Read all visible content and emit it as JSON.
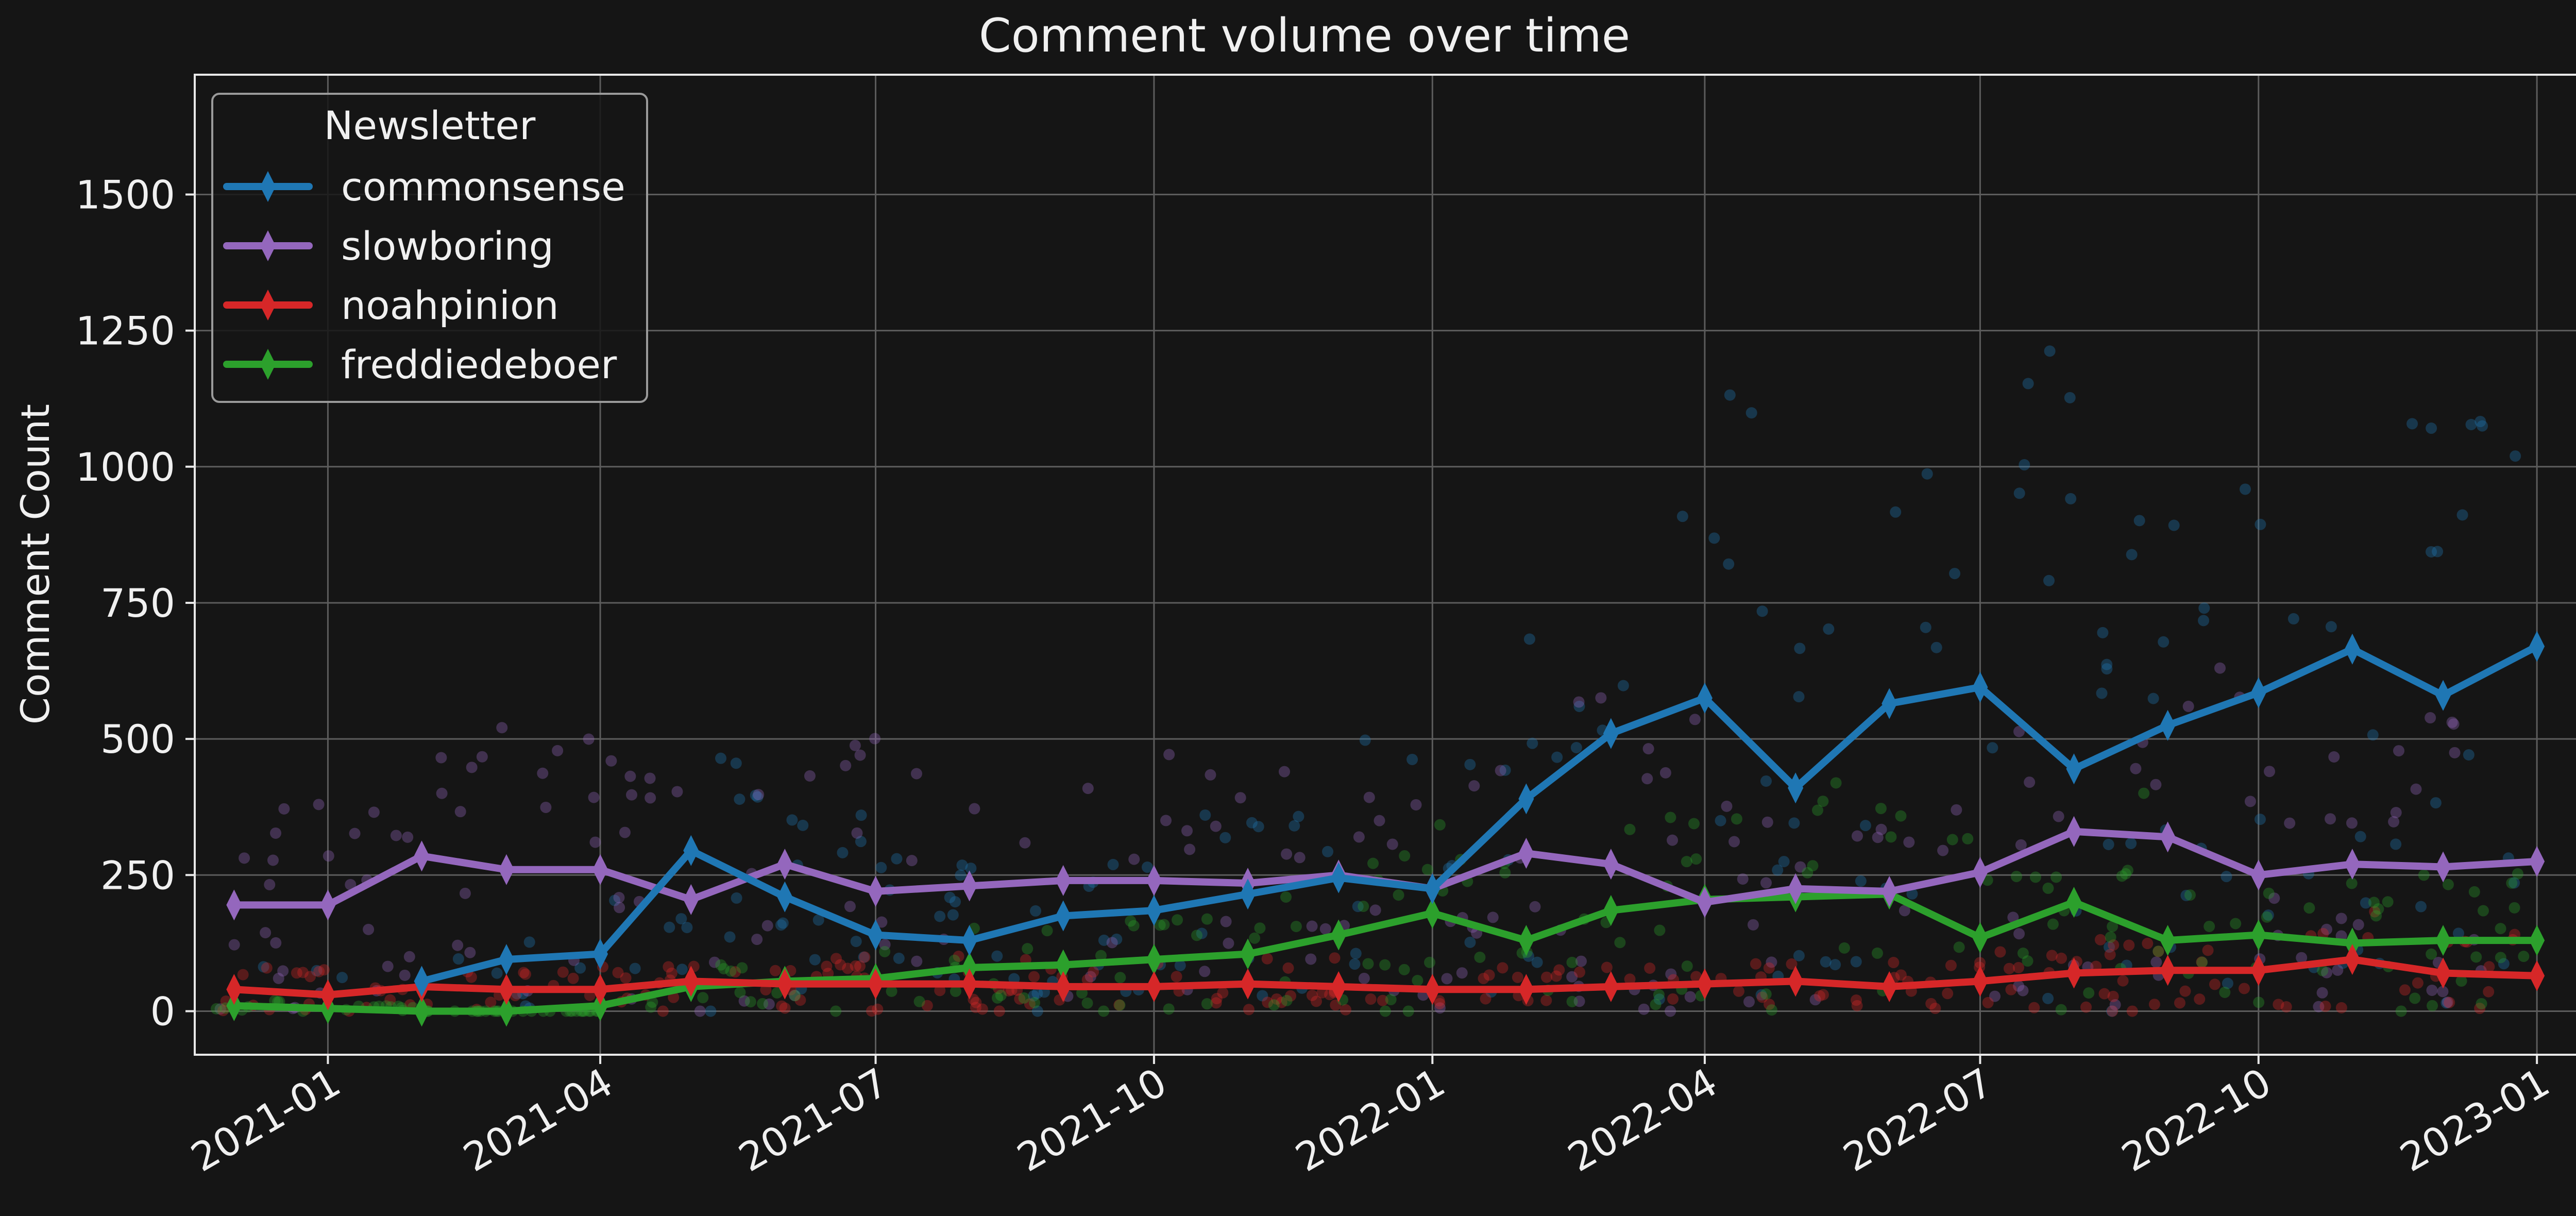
{
  "chart_data": {
    "type": "line",
    "title": "Comment volume over time",
    "xlabel": "",
    "ylabel": "Comment Count",
    "x_range": [
      "2020-11-18",
      "2023-01-18"
    ],
    "ylim": [
      -80,
      1720
    ],
    "y_ticks": [
      0,
      250,
      500,
      750,
      1000,
      1250,
      1500
    ],
    "x_ticks": [
      "2021-01",
      "2021-04",
      "2021-07",
      "2021-10",
      "2022-01",
      "2022-04",
      "2022-07",
      "2022-10",
      "2023-01"
    ],
    "grid": true,
    "legend": {
      "title": "Newsletter",
      "position": "top-left"
    },
    "x": [
      "2020-12-01",
      "2021-01-01",
      "2021-02-01",
      "2021-03-01",
      "2021-04-01",
      "2021-05-01",
      "2021-06-01",
      "2021-07-01",
      "2021-08-01",
      "2021-09-01",
      "2021-10-01",
      "2021-11-01",
      "2021-12-01",
      "2022-01-01",
      "2022-02-01",
      "2022-03-01",
      "2022-04-01",
      "2022-05-01",
      "2022-06-01",
      "2022-07-01",
      "2022-08-01",
      "2022-09-01",
      "2022-10-01",
      "2022-11-01",
      "2022-12-01",
      "2023-01-01"
    ],
    "series": [
      {
        "name": "commonsense",
        "color": "#1f77b4",
        "marker": "thin-diamond",
        "values": [
          null,
          null,
          55,
          95,
          105,
          295,
          210,
          140,
          130,
          175,
          185,
          215,
          245,
          225,
          390,
          510,
          575,
          410,
          565,
          595,
          445,
          525,
          585,
          665,
          580,
          670
        ]
      },
      {
        "name": "slowboring",
        "color": "#9467bd",
        "marker": "thin-diamond",
        "values": [
          195,
          195,
          285,
          260,
          260,
          205,
          270,
          220,
          230,
          240,
          240,
          235,
          250,
          225,
          290,
          270,
          200,
          225,
          220,
          255,
          330,
          320,
          250,
          270,
          265,
          275
        ]
      },
      {
        "name": "noahpinion",
        "color": "#d62728",
        "marker": "thin-diamond",
        "values": [
          40,
          30,
          45,
          40,
          40,
          55,
          50,
          50,
          50,
          45,
          45,
          50,
          45,
          40,
          40,
          45,
          50,
          55,
          45,
          55,
          70,
          75,
          75,
          95,
          70,
          65
        ]
      },
      {
        "name": "freddiedeboer",
        "color": "#2ca02c",
        "marker": "thin-diamond",
        "values": [
          10,
          5,
          0,
          0,
          10,
          45,
          55,
          60,
          80,
          85,
          95,
          105,
          140,
          180,
          130,
          185,
          205,
          210,
          215,
          135,
          200,
          130,
          140,
          125,
          130,
          130
        ]
      }
    ],
    "scatter_note_values": "individual post comment counts shown as faint dots per newsletter"
  }
}
